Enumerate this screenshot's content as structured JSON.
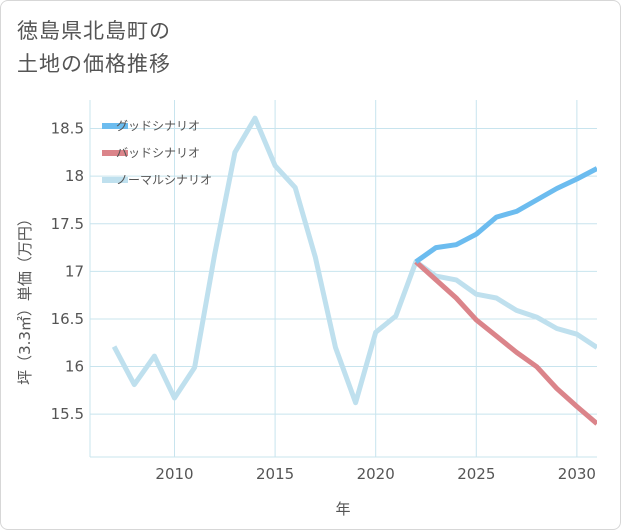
{
  "title_lines": [
    "徳島県北島町の",
    "土地の価格推移"
  ],
  "colors": {
    "good": "#6cbcef",
    "bad": "#db848a",
    "normal": "#bfe0ee",
    "grid": "#c8e4ee",
    "text": "#555555"
  },
  "chart_data": {
    "type": "line",
    "title": "徳島県北島町の土地の価格推移",
    "xlabel": "年",
    "ylabel": "坪（3.3㎡）単価（万円）",
    "xlim": [
      2005.8,
      2031
    ],
    "ylim": [
      15.05,
      18.8
    ],
    "xticks": [
      2010,
      2015,
      2020,
      2025,
      2030
    ],
    "yticks": [
      15.5,
      16,
      16.5,
      17,
      17.5,
      18,
      18.5
    ],
    "grid": true,
    "legend_position": "top-left",
    "series": [
      {
        "key": "good",
        "name": "グッドシナリオ",
        "x": [
          2022,
          2023,
          2024,
          2025,
          2026,
          2027,
          2028,
          2029,
          2030,
          2031
        ],
        "values": [
          17.1,
          17.25,
          17.28,
          17.39,
          17.57,
          17.63,
          17.75,
          17.87,
          17.97,
          18.08
        ]
      },
      {
        "key": "bad",
        "name": "バッドシナリオ",
        "x": [
          2022,
          2023,
          2024,
          2025,
          2026,
          2027,
          2028,
          2029,
          2030,
          2031
        ],
        "values": [
          17.1,
          16.91,
          16.72,
          16.49,
          16.32,
          16.15,
          16.0,
          15.77,
          15.58,
          15.4
        ]
      },
      {
        "key": "normal",
        "name": "ノーマルシナリオ",
        "x": [
          2007,
          2008,
          2009,
          2010,
          2011,
          2012,
          2013,
          2014,
          2015,
          2016,
          2017,
          2018,
          2019,
          2020,
          2021,
          2022,
          2023,
          2024,
          2025,
          2026,
          2027,
          2028,
          2029,
          2030,
          2031
        ],
        "values": [
          16.21,
          15.81,
          16.11,
          15.67,
          15.99,
          17.18,
          18.25,
          18.61,
          18.11,
          17.88,
          17.15,
          16.2,
          15.62,
          16.36,
          16.53,
          17.1,
          16.95,
          16.91,
          16.76,
          16.72,
          16.59,
          16.52,
          16.4,
          16.34,
          16.2
        ]
      }
    ]
  }
}
